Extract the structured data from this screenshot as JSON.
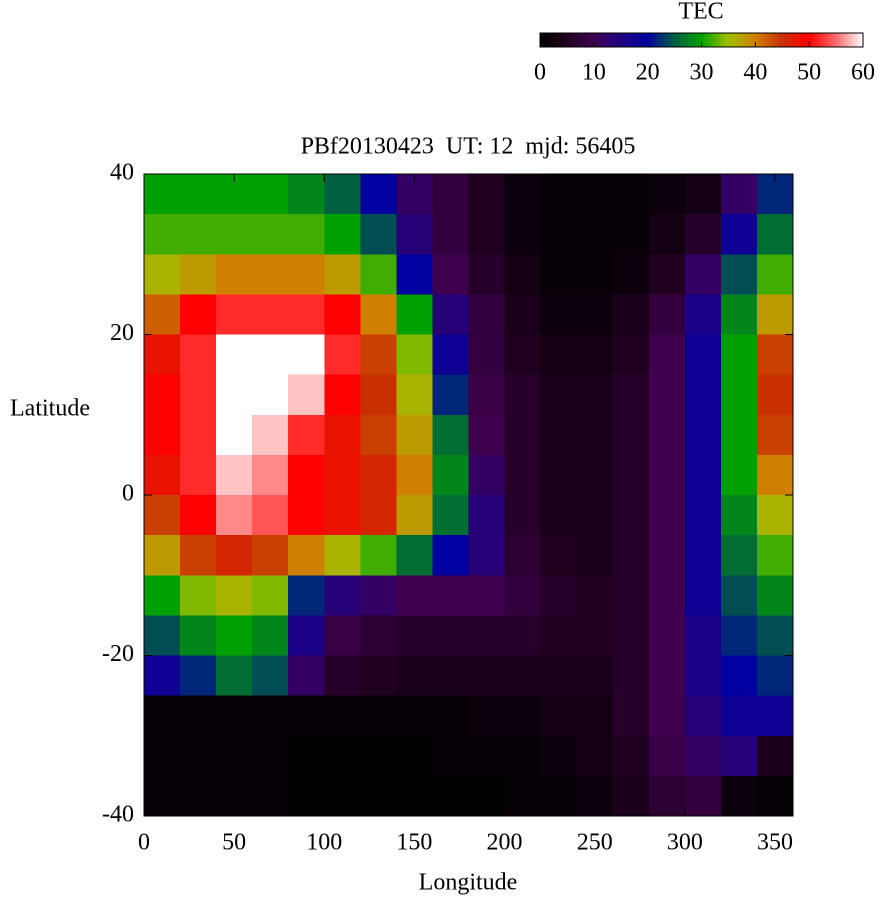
{
  "chart_data": {
    "type": "heatmap",
    "title": "PBf20130423  UT: 12  mjd: 56405",
    "x_label": "Longitude",
    "y_label": "Latitude",
    "colorbar_label": "TEC",
    "xlim": [
      0,
      360
    ],
    "ylim": [
      -40,
      40
    ],
    "xticks": [
      0,
      50,
      100,
      150,
      200,
      250,
      300,
      350
    ],
    "yticks": [
      -40,
      -20,
      0,
      20,
      40
    ],
    "zlim": [
      0,
      60
    ],
    "zticks": [
      0,
      10,
      20,
      30,
      40,
      50,
      60
    ],
    "colormap": [
      "#000000",
      "#200020",
      "#400050",
      "#200080",
      "#0000a0",
      "#006040",
      "#00a000",
      "#a0c000",
      "#d08000",
      "#c83000",
      "#ff0000",
      "#ff6a6a",
      "#ffffff"
    ],
    "x": [
      10,
      30,
      50,
      70,
      90,
      110,
      130,
      150,
      170,
      190,
      210,
      230,
      250,
      270,
      290,
      310,
      330,
      350
    ],
    "y": [
      37.5,
      32.5,
      27.5,
      22.5,
      17.5,
      12.5,
      7.5,
      2.5,
      -2.5,
      -7.5,
      -12.5,
      -17.5,
      -22.5,
      -27.5,
      -32.5,
      -37.5
    ],
    "z": [
      [
        30,
        30,
        30,
        30,
        28,
        25,
        20,
        12,
        8,
        5,
        2,
        1,
        1,
        1,
        2,
        3,
        12,
        22
      ],
      [
        32,
        32,
        32,
        32,
        32,
        30,
        24,
        14,
        8,
        5,
        2,
        1,
        1,
        1,
        3,
        6,
        18,
        26
      ],
      [
        36,
        38,
        40,
        40,
        40,
        38,
        32,
        20,
        10,
        6,
        3,
        1,
        1,
        2,
        5,
        12,
        24,
        32
      ],
      [
        42,
        50,
        52,
        52,
        52,
        50,
        40,
        30,
        14,
        8,
        4,
        2,
        2,
        4,
        8,
        16,
        28,
        38
      ],
      [
        48,
        52,
        60,
        60,
        60,
        52,
        44,
        34,
        18,
        8,
        5,
        3,
        3,
        5,
        10,
        18,
        30,
        44
      ],
      [
        50,
        52,
        60,
        60,
        58,
        50,
        45,
        36,
        22,
        9,
        6,
        4,
        4,
        6,
        10,
        18,
        30,
        45
      ],
      [
        50,
        52,
        60,
        58,
        52,
        48,
        44,
        38,
        26,
        10,
        6,
        4,
        4,
        6,
        10,
        18,
        30,
        44
      ],
      [
        48,
        52,
        58,
        56,
        50,
        48,
        46,
        40,
        28,
        12,
        6,
        4,
        4,
        6,
        10,
        18,
        30,
        40
      ],
      [
        44,
        50,
        56,
        54,
        50,
        48,
        46,
        38,
        26,
        14,
        6,
        4,
        4,
        6,
        10,
        18,
        28,
        36
      ],
      [
        38,
        44,
        46,
        44,
        40,
        36,
        32,
        26,
        20,
        14,
        7,
        5,
        4,
        6,
        10,
        18,
        26,
        32
      ],
      [
        30,
        34,
        36,
        34,
        22,
        14,
        12,
        10,
        10,
        10,
        8,
        6,
        5,
        6,
        10,
        18,
        24,
        28
      ],
      [
        24,
        28,
        30,
        28,
        16,
        9,
        7,
        6,
        6,
        6,
        6,
        5,
        5,
        6,
        10,
        16,
        22,
        24
      ],
      [
        18,
        22,
        26,
        24,
        12,
        6,
        5,
        4,
        4,
        4,
        4,
        4,
        4,
        6,
        10,
        16,
        20,
        22
      ],
      [
        1,
        1,
        1,
        1,
        1,
        1,
        1,
        1,
        1,
        2,
        2,
        3,
        3,
        6,
        10,
        14,
        18,
        18
      ],
      [
        1,
        1,
        1,
        1,
        0,
        0,
        0,
        0,
        1,
        1,
        1,
        2,
        3,
        5,
        9,
        12,
        14,
        4
      ],
      [
        1,
        1,
        1,
        1,
        0,
        0,
        0,
        0,
        0,
        0,
        1,
        1,
        2,
        4,
        7,
        8,
        2,
        1
      ]
    ]
  }
}
